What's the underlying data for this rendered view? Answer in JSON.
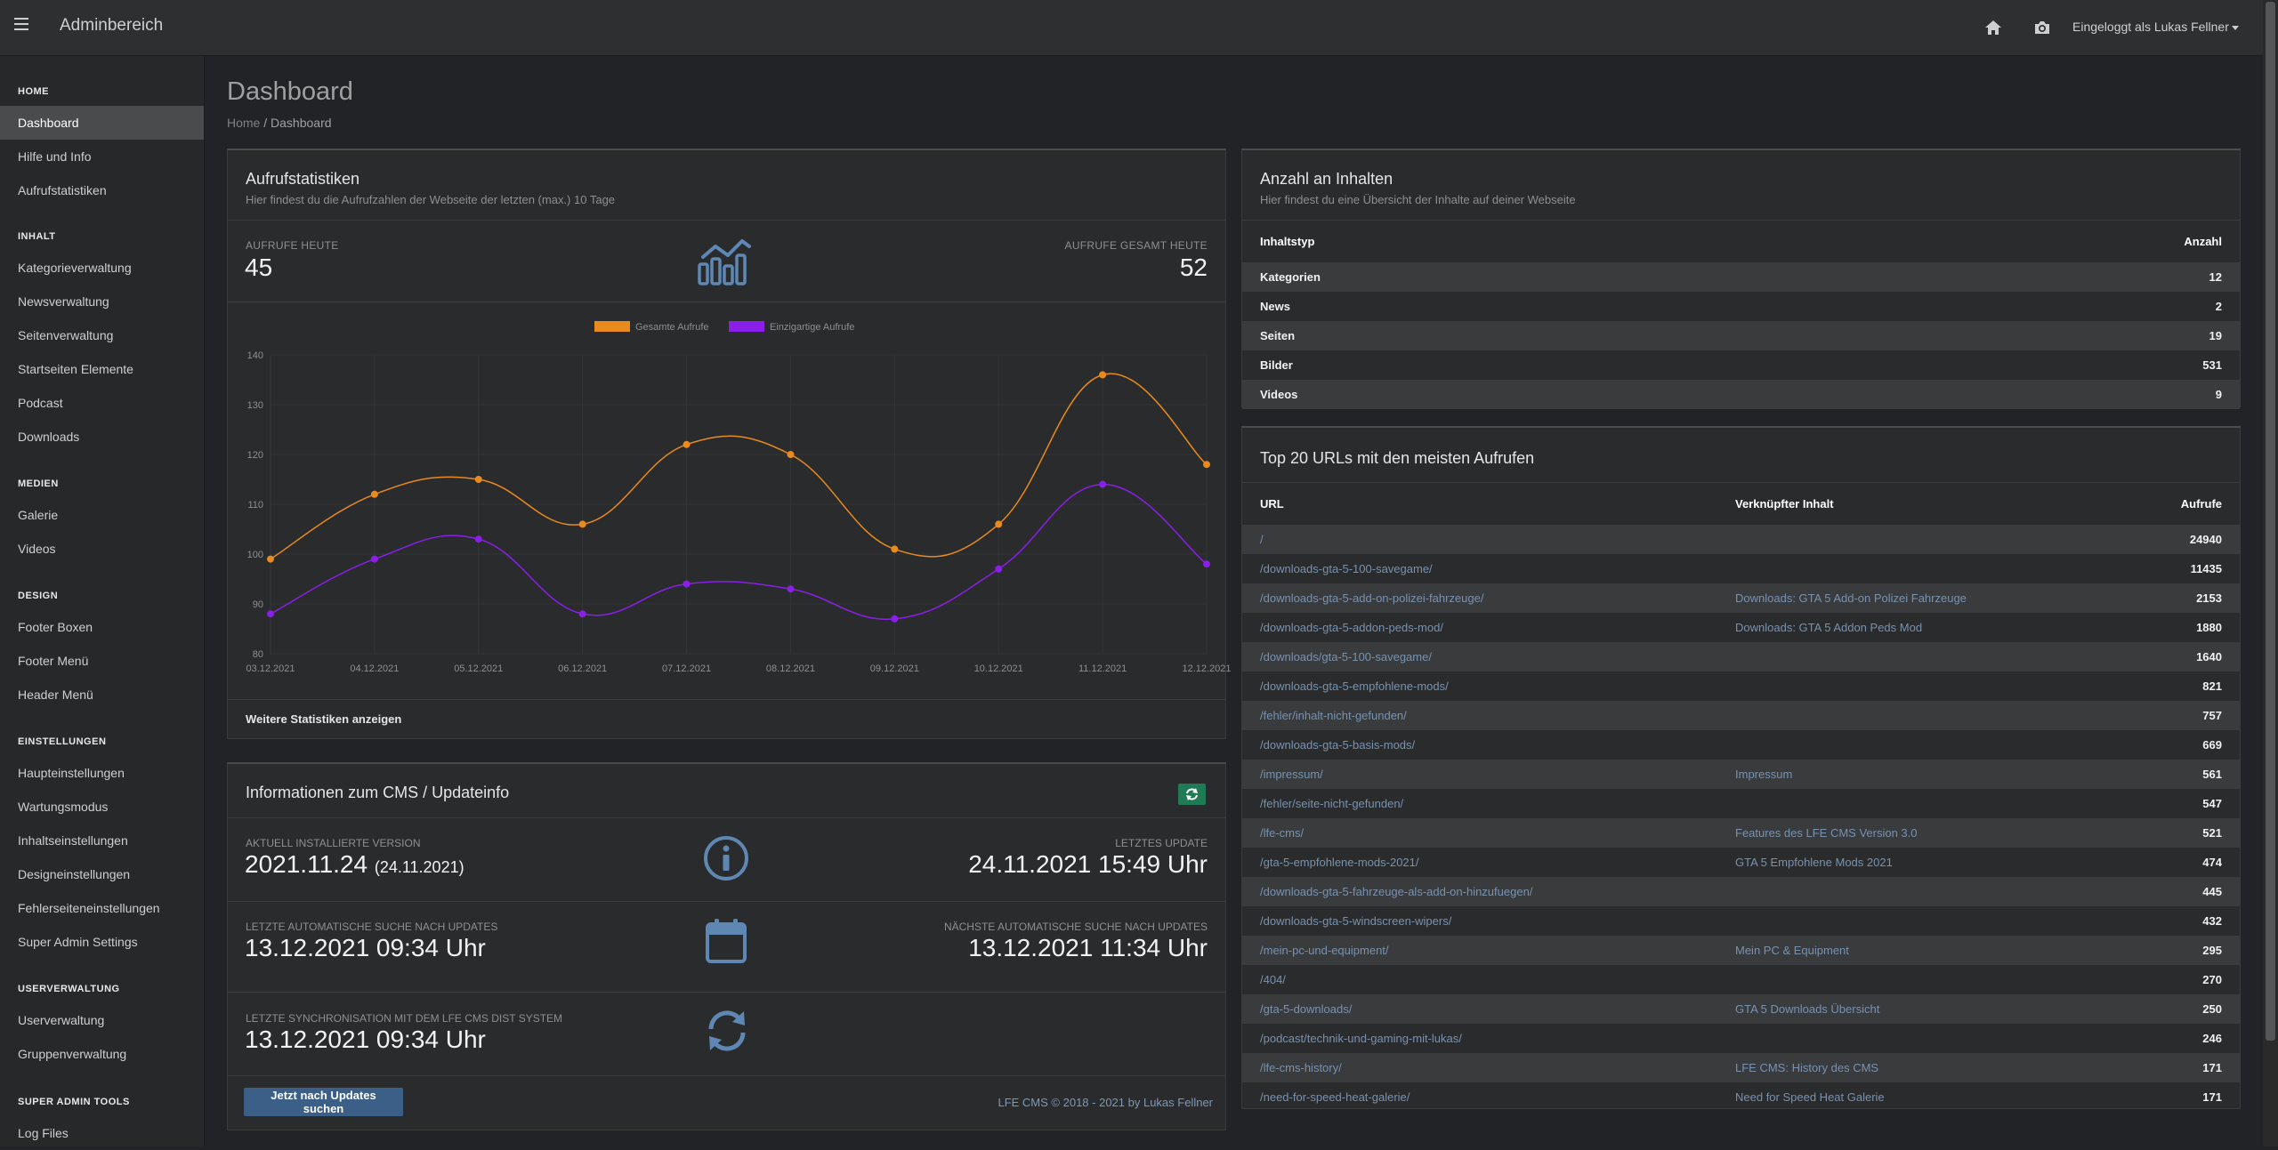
{
  "header": {
    "title": "Adminbereich",
    "user_label": "Eingeloggt als Lukas Fellner"
  },
  "sidebar": {
    "sections": [
      {
        "title": "HOME",
        "items": [
          "Dashboard",
          "Hilfe und Info",
          "Aufrufstatistiken"
        ]
      },
      {
        "title": "INHALT",
        "items": [
          "Kategorieverwaltung",
          "Newsverwaltung",
          "Seitenverwaltung",
          "Startseiten Elemente",
          "Podcast",
          "Downloads"
        ]
      },
      {
        "title": "MEDIEN",
        "items": [
          "Galerie",
          "Videos"
        ]
      },
      {
        "title": "DESIGN",
        "items": [
          "Footer Boxen",
          "Footer Menü",
          "Header Menü"
        ]
      },
      {
        "title": "EINSTELLUNGEN",
        "items": [
          "Haupteinstellungen",
          "Wartungsmodus",
          "Inhaltseinstellungen",
          "Designeinstellungen",
          "Fehlerseiteneinstellungen",
          "Super Admin Settings"
        ]
      },
      {
        "title": "USERVERWALTUNG",
        "items": [
          "Userverwaltung",
          "Gruppenverwaltung"
        ]
      },
      {
        "title": "SUPER ADMIN TOOLS",
        "items": [
          "Log Files"
        ]
      }
    ],
    "active_item": "Dashboard"
  },
  "page": {
    "title": "Dashboard",
    "breadcrumb_home": "Home",
    "breadcrumb_sep": "/",
    "breadcrumb_current": "Dashboard"
  },
  "stats_panel": {
    "title": "Aufrufstatistiken",
    "subtitle": "Hier findest du die Aufrufzahlen der Webseite der letzten (max.) 10 Tage",
    "today_label": "AUFRUFE HEUTE",
    "today_value": "45",
    "total_label": "AUFRUFE GESAMT HEUTE",
    "total_value": "52",
    "more_link": "Weitere Statistiken anzeigen"
  },
  "chart_data": {
    "type": "line",
    "categories": [
      "03.12.2021",
      "04.12.2021",
      "05.12.2021",
      "06.12.2021",
      "07.12.2021",
      "08.12.2021",
      "09.12.2021",
      "10.12.2021",
      "11.12.2021",
      "12.12.2021"
    ],
    "series": [
      {
        "name": "Gesamte Aufrufe",
        "color": "#e98a1f",
        "values": [
          99,
          112,
          115,
          106,
          122,
          120,
          101,
          106,
          136,
          118
        ]
      },
      {
        "name": "Einzigartige Aufrufe",
        "color": "#8a1fe9",
        "values": [
          88,
          99,
          103,
          88,
          94,
          93,
          87,
          97,
          114,
          98
        ]
      }
    ],
    "ylim": [
      80,
      140
    ],
    "yticks": [
      80,
      90,
      100,
      110,
      120,
      130,
      140
    ],
    "grid": true,
    "legend_position": "top"
  },
  "cms_panel": {
    "title": "Informationen zum CMS / Updateinfo",
    "installed_label": "AKTUELL INSTALLIERTE VERSION",
    "installed_value": "2021.11.24",
    "installed_date": "(24.11.2021)",
    "last_update_label": "LETZTES UPDATE",
    "last_update_value": "24.11.2021 15:49 Uhr",
    "last_search_label": "LETZTE AUTOMATISCHE SUCHE NACH UPDATES",
    "last_search_value": "13.12.2021 09:34 Uhr",
    "next_search_label": "NÄCHSTE AUTOMATISCHE SUCHE NACH UPDATES",
    "next_search_value": "13.12.2021 11:34 Uhr",
    "sync_label": "LETZTE SYNCHRONISATION MIT DEM LFE CMS DIST SYSTEM",
    "sync_value": "13.12.2021 09:34 Uhr",
    "update_button": "Jetzt nach Updates suchen",
    "footer": "LFE CMS © 2018 - 2021 by Lukas Fellner"
  },
  "content_panel": {
    "title": "Anzahl an Inhalten",
    "subtitle": "Hier findest du eine Übersicht der Inhalte auf deiner Webseite",
    "col_type": "Inhaltstyp",
    "col_count": "Anzahl",
    "rows": [
      {
        "type": "Kategorien",
        "count": "12"
      },
      {
        "type": "News",
        "count": "2"
      },
      {
        "type": "Seiten",
        "count": "19"
      },
      {
        "type": "Bilder",
        "count": "531"
      },
      {
        "type": "Videos",
        "count": "9"
      }
    ]
  },
  "urls_panel": {
    "title": "Top 20 URLs mit den meisten Aufrufen",
    "col_url": "URL",
    "col_content": "Verknüpfter Inhalt",
    "col_calls": "Aufrufe",
    "rows": [
      {
        "url": "/",
        "content": "",
        "calls": "24940"
      },
      {
        "url": "/downloads-gta-5-100-savegame/",
        "content": "",
        "calls": "11435"
      },
      {
        "url": "/downloads-gta-5-add-on-polizei-fahrzeuge/",
        "content": "Downloads: GTA 5 Add-on Polizei Fahrzeuge",
        "calls": "2153"
      },
      {
        "url": "/downloads-gta-5-addon-peds-mod/",
        "content": "Downloads: GTA 5 Addon Peds Mod",
        "calls": "1880"
      },
      {
        "url": "/downloads/gta-5-100-savegame/",
        "content": "",
        "calls": "1640"
      },
      {
        "url": "/downloads-gta-5-empfohlene-mods/",
        "content": "",
        "calls": "821"
      },
      {
        "url": "/fehler/inhalt-nicht-gefunden/",
        "content": "",
        "calls": "757"
      },
      {
        "url": "/downloads-gta-5-basis-mods/",
        "content": "",
        "calls": "669"
      },
      {
        "url": "/impressum/",
        "content": "Impressum",
        "calls": "561"
      },
      {
        "url": "/fehler/seite-nicht-gefunden/",
        "content": "",
        "calls": "547"
      },
      {
        "url": "/lfe-cms/",
        "content": "Features des LFE CMS Version 3.0",
        "calls": "521"
      },
      {
        "url": "/gta-5-empfohlene-mods-2021/",
        "content": "GTA 5 Empfohlene Mods 2021",
        "calls": "474"
      },
      {
        "url": "/downloads-gta-5-fahrzeuge-als-add-on-hinzufuegen/",
        "content": "",
        "calls": "445"
      },
      {
        "url": "/downloads-gta-5-windscreen-wipers/",
        "content": "",
        "calls": "432"
      },
      {
        "url": "/mein-pc-und-equipment/",
        "content": "Mein PC & Equipment",
        "calls": "295"
      },
      {
        "url": "/404/",
        "content": "",
        "calls": "270"
      },
      {
        "url": "/gta-5-downloads/",
        "content": "GTA 5 Downloads Übersicht",
        "calls": "250"
      },
      {
        "url": "/podcast/technik-und-gaming-mit-lukas/",
        "content": "",
        "calls": "246"
      },
      {
        "url": "/lfe-cms-history/",
        "content": "LFE CMS: History des CMS",
        "calls": "171"
      },
      {
        "url": "/need-for-speed-heat-galerie/",
        "content": "Need for Speed Heat Galerie",
        "calls": "171"
      }
    ]
  },
  "icons": {
    "menu": "hamburger-icon",
    "home": "home-icon",
    "camera": "camera-icon",
    "stats": "chart-line-icon",
    "info": "info-circle-icon",
    "calendar": "calendar-icon",
    "sync": "sync-icon",
    "refresh": "refresh-icon"
  },
  "colors": {
    "accent_blue": "#3b5f86",
    "refresh_green": "#1f7a55",
    "link": "#7792b0"
  }
}
